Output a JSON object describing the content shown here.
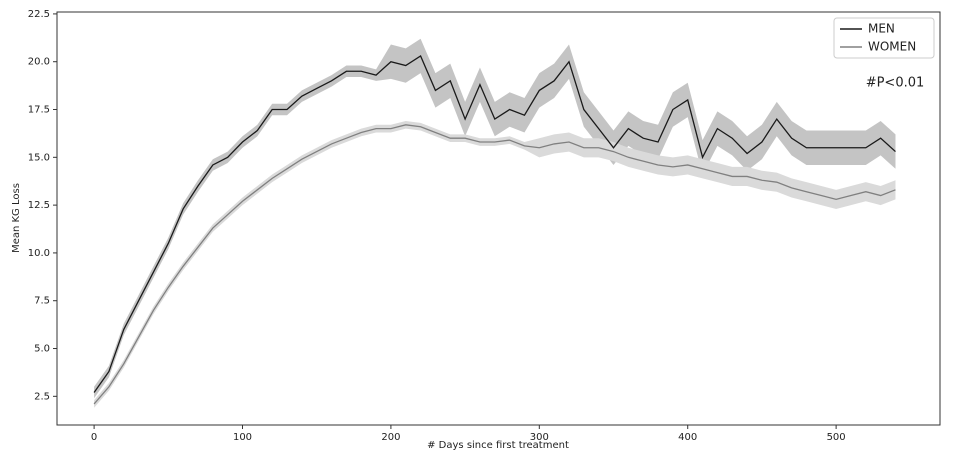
{
  "chart_data": {
    "type": "line",
    "xlabel": "# Days since first treatment",
    "ylabel": "Mean KG Loss",
    "annotation": "#P<0.01",
    "xlim": [
      -25,
      570
    ],
    "ylim": [
      1.0,
      22.6
    ],
    "xticks": [
      0,
      100,
      200,
      300,
      400,
      500
    ],
    "yticks": [
      2.5,
      5.0,
      7.5,
      10.0,
      12.5,
      15.0,
      17.5,
      20.0,
      22.5
    ],
    "grid": false,
    "legend": "upper right",
    "x": [
      0,
      10,
      20,
      30,
      40,
      50,
      60,
      70,
      80,
      90,
      100,
      110,
      120,
      130,
      140,
      150,
      160,
      170,
      180,
      190,
      200,
      210,
      220,
      230,
      240,
      250,
      260,
      270,
      280,
      290,
      300,
      310,
      320,
      330,
      340,
      350,
      360,
      370,
      380,
      390,
      400,
      410,
      420,
      430,
      440,
      450,
      460,
      470,
      480,
      490,
      500,
      510,
      520,
      530,
      540
    ],
    "series": [
      {
        "name": "MEN",
        "color": "#1a1a1a",
        "band_color": "#c4c4c4",
        "values": [
          2.7,
          3.8,
          6.0,
          7.5,
          9.0,
          10.5,
          12.3,
          13.5,
          14.6,
          15.0,
          15.8,
          16.4,
          17.5,
          17.5,
          18.2,
          18.6,
          19.0,
          19.5,
          19.5,
          19.3,
          20.0,
          19.8,
          20.3,
          18.5,
          19.0,
          17.0,
          18.8,
          17.0,
          17.5,
          17.2,
          18.5,
          19.0,
          20.0,
          17.5,
          16.5,
          15.5,
          16.5,
          16.0,
          15.8,
          17.5,
          18.0,
          15.0,
          16.5,
          16.0,
          15.2,
          15.8,
          17.0,
          16.0,
          15.5,
          15.5,
          15.5,
          15.5,
          15.5,
          16.0,
          15.3
        ],
        "lower": [
          2.4,
          3.5,
          5.7,
          7.2,
          8.7,
          10.2,
          12.0,
          13.2,
          14.3,
          14.7,
          15.5,
          16.1,
          17.2,
          17.2,
          17.9,
          18.3,
          18.7,
          19.2,
          19.2,
          19.0,
          19.1,
          18.9,
          19.4,
          17.6,
          18.1,
          16.1,
          17.9,
          16.1,
          16.6,
          16.3,
          17.6,
          18.1,
          19.1,
          16.6,
          15.6,
          14.6,
          15.6,
          15.1,
          14.9,
          16.6,
          17.1,
          14.1,
          15.6,
          15.1,
          14.3,
          14.9,
          16.1,
          15.1,
          14.6,
          14.6,
          14.6,
          14.6,
          14.6,
          15.1,
          14.4
        ],
        "upper": [
          3.0,
          4.1,
          6.3,
          7.8,
          9.3,
          10.8,
          12.6,
          13.8,
          14.9,
          15.3,
          16.1,
          16.7,
          17.8,
          17.8,
          18.5,
          18.9,
          19.3,
          19.8,
          19.8,
          19.6,
          20.9,
          20.7,
          21.2,
          19.4,
          19.9,
          17.9,
          19.7,
          17.9,
          18.4,
          18.1,
          19.4,
          19.9,
          20.9,
          18.4,
          17.4,
          16.4,
          17.4,
          16.9,
          16.7,
          18.4,
          18.9,
          15.9,
          17.4,
          16.9,
          16.1,
          16.7,
          17.9,
          16.9,
          16.4,
          16.4,
          16.4,
          16.4,
          16.4,
          16.9,
          16.2
        ]
      },
      {
        "name": "WOMEN",
        "color": "#808080",
        "band_color": "#dadada",
        "values": [
          2.1,
          3.0,
          4.2,
          5.6,
          7.0,
          8.2,
          9.3,
          10.3,
          11.3,
          12.0,
          12.7,
          13.3,
          13.9,
          14.4,
          14.9,
          15.3,
          15.7,
          16.0,
          16.3,
          16.5,
          16.5,
          16.7,
          16.6,
          16.3,
          16.0,
          16.0,
          15.8,
          15.8,
          15.9,
          15.6,
          15.5,
          15.7,
          15.8,
          15.5,
          15.5,
          15.3,
          15.0,
          14.8,
          14.6,
          14.5,
          14.6,
          14.4,
          14.2,
          14.0,
          14.0,
          13.8,
          13.7,
          13.4,
          13.2,
          13.0,
          12.8,
          13.0,
          13.2,
          13.0,
          13.3
        ],
        "lower": [
          1.9,
          2.8,
          4.0,
          5.4,
          6.8,
          8.0,
          9.1,
          10.1,
          11.1,
          11.8,
          12.5,
          13.1,
          13.7,
          14.2,
          14.7,
          15.1,
          15.5,
          15.8,
          16.1,
          16.3,
          16.3,
          16.5,
          16.4,
          16.1,
          15.8,
          15.8,
          15.6,
          15.6,
          15.7,
          15.4,
          15.0,
          15.2,
          15.3,
          15.0,
          15.0,
          14.8,
          14.5,
          14.3,
          14.1,
          14.0,
          14.1,
          13.9,
          13.7,
          13.5,
          13.5,
          13.3,
          13.2,
          12.9,
          12.7,
          12.5,
          12.3,
          12.5,
          12.7,
          12.5,
          12.8
        ],
        "upper": [
          2.3,
          3.2,
          4.4,
          5.8,
          7.2,
          8.4,
          9.5,
          10.5,
          11.5,
          12.2,
          12.9,
          13.5,
          14.1,
          14.6,
          15.1,
          15.5,
          15.9,
          16.2,
          16.5,
          16.7,
          16.7,
          16.9,
          16.8,
          16.5,
          16.2,
          16.2,
          16.0,
          16.0,
          16.1,
          15.8,
          16.0,
          16.2,
          16.3,
          16.0,
          16.0,
          15.8,
          15.5,
          15.3,
          15.1,
          15.0,
          15.1,
          14.9,
          14.7,
          14.5,
          14.5,
          14.3,
          14.2,
          13.9,
          13.7,
          13.5,
          13.3,
          13.5,
          13.7,
          13.5,
          13.8
        ]
      }
    ]
  }
}
